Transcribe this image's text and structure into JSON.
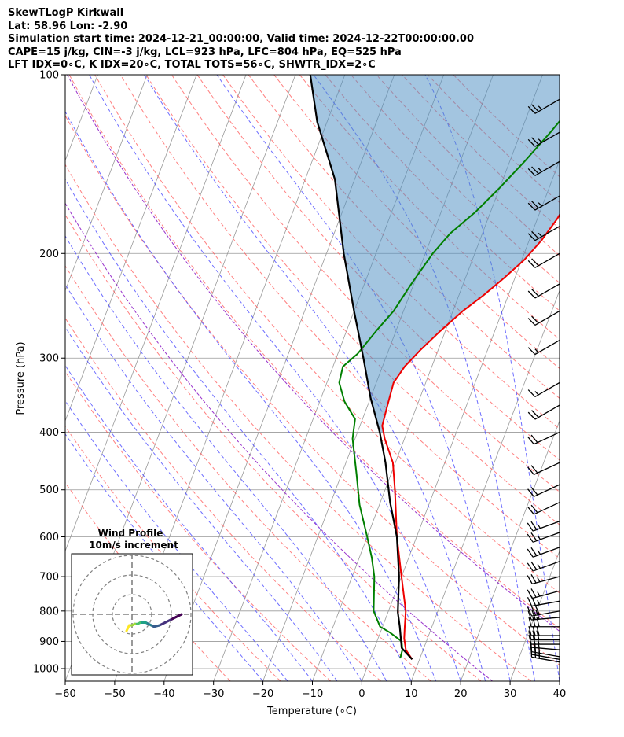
{
  "header": {
    "line1": "SkewTLogP Kirkwall",
    "line2": "Lat: 58.96   Lon: -2.90",
    "line3": "Simulation start time: 2024-12-21_00:00:00, Valid time: 2024-12-22T00:00:00.00",
    "line4": "CAPE=15 j/kg, CIN=-3 j/kg, LCL=923 hPa, LFC=804 hPa, EQ=525 hPa",
    "line5": "LFT IDX=0∘C, K IDX=20∘C, TOTAL TOTS=56∘C, SHWTR_IDX=2∘C"
  },
  "chart_data": [
    {
      "type": "line",
      "title": "",
      "xlabel": "Temperature (∘C)",
      "ylabel": "Pressure (hPa)",
      "xlim": [
        -60,
        40
      ],
      "ylim": [
        1050,
        100
      ],
      "y_scale": "log",
      "skew": "skew-T log-P",
      "grid": true,
      "x_ticks": [
        -60,
        -50,
        -40,
        -30,
        -20,
        -10,
        0,
        10,
        20,
        30,
        40
      ],
      "y_ticks": [
        100,
        200,
        300,
        400,
        500,
        600,
        700,
        800,
        900,
        1000
      ],
      "colors": {
        "temperature": "#ee0000",
        "dewpoint": "#007f00",
        "parcel": "#000000",
        "cape_fill": "#4f90c4",
        "dry_adiabat": "#ff5555",
        "moist_adiabat": "#4a4aff",
        "isotherm": "#999999",
        "freezing_level_lines": "#9933cc"
      },
      "series": [
        {
          "key": "temperature",
          "points": [
            [
              8.5,
              965
            ],
            [
              6.5,
              930
            ],
            [
              5.3,
              890
            ],
            [
              4.5,
              850
            ],
            [
              3.5,
              800
            ],
            [
              0,
              700
            ],
            [
              -4,
              600
            ],
            [
              -8,
              500
            ],
            [
              -10.5,
              450
            ],
            [
              -14,
              410
            ],
            [
              -15.5,
              390
            ],
            [
              -16,
              360
            ],
            [
              -16.5,
              330
            ],
            [
              -15.5,
              310
            ],
            [
              -13.5,
              290
            ],
            [
              -11,
              270
            ],
            [
              -8,
              250
            ],
            [
              -5,
              235
            ],
            [
              -2.2,
              220
            ],
            [
              0.5,
              205
            ],
            [
              2.5,
              190
            ],
            [
              4,
              175
            ],
            [
              5,
              160
            ],
            [
              6,
              150
            ],
            [
              7,
              140
            ],
            [
              8,
              130
            ],
            [
              10,
              120
            ],
            [
              13,
              110
            ],
            [
              15,
              100
            ]
          ]
        },
        {
          "key": "dewpoint",
          "points": [
            [
              6,
              960
            ],
            [
              5.8,
              930
            ],
            [
              5,
              900
            ],
            [
              2,
              870
            ],
            [
              -0.5,
              850
            ],
            [
              -3,
              800
            ],
            [
              -5.5,
              700
            ],
            [
              -7.5,
              650
            ],
            [
              -10,
              600
            ],
            [
              -14,
              530
            ],
            [
              -17,
              470
            ],
            [
              -20.5,
              410
            ],
            [
              -21.5,
              380
            ],
            [
              -25,
              355
            ],
            [
              -27.5,
              330
            ],
            [
              -28,
              310
            ],
            [
              -26,
              295
            ],
            [
              -24,
              270
            ],
            [
              -22,
              250
            ],
            [
              -20.5,
              225
            ],
            [
              -18.5,
              200
            ],
            [
              -16.5,
              185
            ],
            [
              -13,
              170
            ],
            [
              -10,
              155
            ],
            [
              -7,
              140
            ],
            [
              -4,
              125
            ],
            [
              -1,
              110
            ],
            [
              2,
              100
            ]
          ]
        },
        {
          "key": "parcel",
          "points": [
            [
              8.5,
              965
            ],
            [
              5.5,
              923
            ],
            [
              3.5,
              850
            ],
            [
              2,
              804
            ],
            [
              -0.5,
              700
            ],
            [
              -4,
              600
            ],
            [
              -8,
              525
            ],
            [
              -12,
              450
            ],
            [
              -15.5,
              400
            ],
            [
              -20,
              350
            ],
            [
              -24.5,
              300
            ],
            [
              -30,
              250
            ],
            [
              -36.5,
              200
            ],
            [
              -44,
              150
            ],
            [
              -52,
              120
            ],
            [
              -57,
              100
            ]
          ]
        }
      ],
      "cape_fill_between": [
        "parcel",
        "temperature"
      ],
      "wind_barbs": {
        "levels_hPa": [
          975,
          965,
          955,
          930,
          910,
          895,
          880,
          850,
          820,
          800,
          770,
          740,
          700,
          660,
          625,
          590,
          565,
          525,
          490,
          450,
          400,
          360,
          330,
          280,
          250,
          225,
          200,
          180,
          160,
          140,
          125,
          110
        ],
        "dir_deg": [
          280,
          280,
          280,
          275,
          270,
          270,
          270,
          270,
          265,
          260,
          260,
          255,
          255,
          250,
          250,
          250,
          250,
          245,
          245,
          245,
          245,
          240,
          240,
          240,
          240,
          240,
          240,
          240,
          240,
          240,
          240,
          240
        ],
        "speed_kt": [
          25,
          25,
          25,
          25,
          25,
          30,
          30,
          30,
          30,
          30,
          25,
          25,
          25,
          25,
          25,
          25,
          25,
          20,
          20,
          20,
          20,
          20,
          15,
          15,
          20,
          20,
          20,
          25,
          25,
          25,
          25,
          25
        ]
      }
    },
    {
      "type": "scatter",
      "title": "Wind Profile",
      "subtitle": "10m/s increment",
      "x": [
        18,
        16,
        14,
        12,
        10,
        8,
        7,
        6,
        5,
        4,
        3,
        2,
        1,
        0,
        -1,
        -1.5,
        -2
      ],
      "y": [
        0,
        -1,
        -2,
        -3,
        -4,
        -4.5,
        -4,
        -3.5,
        -3,
        -3,
        -3,
        -3.5,
        -3.5,
        -4,
        -4,
        -5,
        -6
      ],
      "ring_step_m_s": 10,
      "rings": 3,
      "colormap": "viridis"
    }
  ]
}
